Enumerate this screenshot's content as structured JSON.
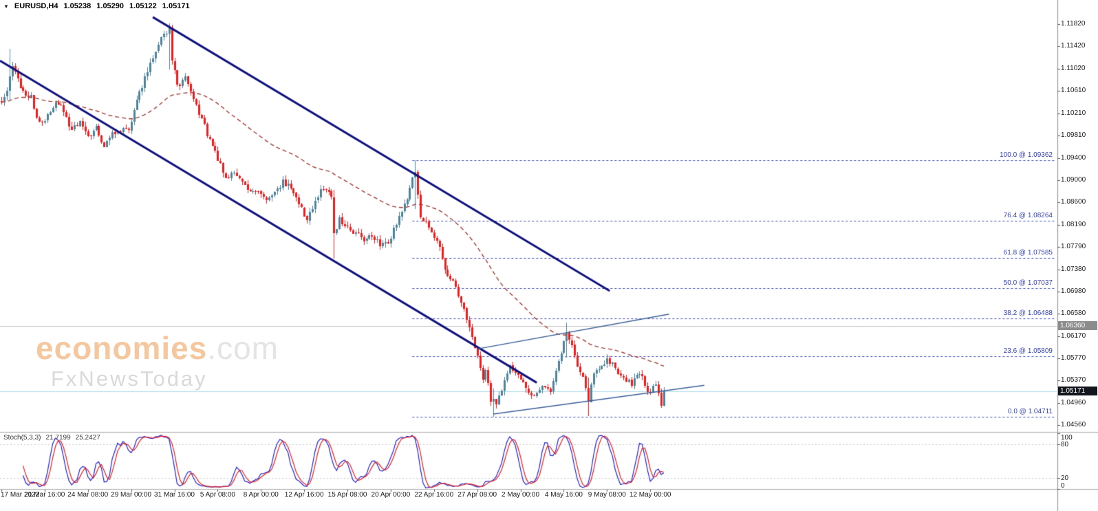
{
  "header": {
    "dropdown_icon": "triangle-down",
    "symbol_timeframe": "EURUSD,H4",
    "open": "1.05238",
    "high": "1.05290",
    "low": "1.05122",
    "close": "1.05171"
  },
  "watermark": {
    "brand": "economies",
    "suffix": ".com",
    "subtitle": "FxNewsToday",
    "brand_color": "#f5c79e",
    "suffix_color": "#e4e4e4",
    "subtitle_color": "#d9d9d9"
  },
  "price_axis": {
    "current_price_badge": {
      "value": "1.05171",
      "bg": "#14161e",
      "color": "#ffffff"
    },
    "level_badge": {
      "value": "1.06360",
      "bg": "#8c8c8c",
      "color": "#ffffff"
    }
  },
  "indicator_panel": {
    "name": "Stoch(5,3,3)",
    "main_value": "21.7199",
    "signal_value": "25.2427"
  },
  "chart_data": {
    "type": "candlestick",
    "symbol": "EURUSD",
    "timeframe": "H4",
    "bars": 246,
    "bar_labels_every": 16,
    "price_range": {
      "min": 1.0445,
      "max": 1.1226
    },
    "price_axis_labels": [
      "1.11820",
      "1.11420",
      "1.11020",
      "1.10610",
      "1.10210",
      "1.09810",
      "1.09400",
      "1.09000",
      "1.08600",
      "1.08190",
      "1.07790",
      "1.07380",
      "1.06980",
      "1.06580",
      "1.06170",
      "1.05770",
      "1.05370",
      "1.04960",
      "1.04560"
    ],
    "time_axis_labels": [
      "17 Mar 2022",
      "21 Mar 16:00",
      "24 Mar 08:00",
      "29 Mar 00:00",
      "31 Mar 16:00",
      "5 Apr 08:00",
      "8 Apr 00:00",
      "12 Apr 16:00",
      "15 Apr 08:00",
      "20 Apr 00:00",
      "22 Apr 16:00",
      "27 Apr 08:00",
      "2 May 00:00",
      "4 May 16:00",
      "9 May 08:00",
      "12 May 00:00"
    ],
    "price_path": [
      [
        0,
        1.104
      ],
      [
        2,
        1.106
      ],
      [
        4,
        1.111
      ],
      [
        5,
        1.1092
      ],
      [
        8,
        1.1062
      ],
      [
        11,
        1.105
      ],
      [
        14,
        1.1
      ],
      [
        17,
        1.1015
      ],
      [
        20,
        1.1042
      ],
      [
        23,
        1.1028
      ],
      [
        26,
        1.099
      ],
      [
        29,
        1.1003
      ],
      [
        32,
        1.0975
      ],
      [
        35,
        1.0997
      ],
      [
        38,
        1.096
      ],
      [
        41,
        1.0982
      ],
      [
        44,
        1.0992
      ],
      [
        47,
        1.0985
      ],
      [
        50,
        1.104
      ],
      [
        53,
        1.1086
      ],
      [
        56,
        1.112
      ],
      [
        59,
        1.1157
      ],
      [
        62,
        1.1175
      ],
      [
        63,
        1.112
      ],
      [
        65,
        1.1067
      ],
      [
        68,
        1.109
      ],
      [
        71,
        1.1045
      ],
      [
        74,
        1.101
      ],
      [
        77,
        1.0971
      ],
      [
        80,
        1.094
      ],
      [
        83,
        1.0906
      ],
      [
        86,
        1.0912
      ],
      [
        89,
        1.0895
      ],
      [
        92,
        1.0882
      ],
      [
        95,
        1.0878
      ],
      [
        98,
        1.0866
      ],
      [
        101,
        1.0876
      ],
      [
        104,
        1.09
      ],
      [
        107,
        1.0882
      ],
      [
        110,
        1.0856
      ],
      [
        113,
        1.0827
      ],
      [
        116,
        1.0866
      ],
      [
        119,
        1.0885
      ],
      [
        122,
        1.087
      ],
      [
        123,
        1.08
      ],
      [
        125,
        1.0827
      ],
      [
        128,
        1.0812
      ],
      [
        131,
        1.0805
      ],
      [
        134,
        1.079
      ],
      [
        137,
        1.0802
      ],
      [
        140,
        1.078
      ],
      [
        143,
        1.0786
      ],
      [
        146,
        1.0822
      ],
      [
        149,
        1.0853
      ],
      [
        152,
        1.09
      ],
      [
        153,
        1.092
      ],
      [
        155,
        1.0836
      ],
      [
        158,
        1.0812
      ],
      [
        161,
        1.0793
      ],
      [
        164,
        1.074
      ],
      [
        167,
        1.0713
      ],
      [
        170,
        1.068
      ],
      [
        173,
        1.0637
      ],
      [
        176,
        1.058
      ],
      [
        178,
        1.0535
      ],
      [
        179,
        1.0557
      ],
      [
        181,
        1.05
      ],
      [
        183,
        1.0498
      ],
      [
        185,
        1.0522
      ],
      [
        188,
        1.0562
      ],
      [
        191,
        1.0545
      ],
      [
        194,
        1.0521
      ],
      [
        197,
        1.0504
      ],
      [
        200,
        1.0532
      ],
      [
        203,
        1.0522
      ],
      [
        206,
        1.057
      ],
      [
        209,
        1.0622
      ],
      [
        211,
        1.0598
      ],
      [
        213,
        1.056
      ],
      [
        215,
        1.054
      ],
      [
        217,
        1.05
      ],
      [
        219,
        1.0551
      ],
      [
        221,
        1.0562
      ],
      [
        224,
        1.0572
      ],
      [
        227,
        1.056
      ],
      [
        230,
        1.0542
      ],
      [
        233,
        1.0529
      ],
      [
        236,
        1.0552
      ],
      [
        239,
        1.0514
      ],
      [
        242,
        1.0532
      ],
      [
        244,
        1.0495
      ],
      [
        245,
        1.05171
      ]
    ],
    "wick_overrides": [
      [
        3,
        1.1137,
        1.1045
      ],
      [
        62,
        1.1184,
        1.11
      ],
      [
        123,
        1.0882,
        1.0757
      ],
      [
        153,
        1.0936,
        1.0848
      ],
      [
        182,
        1.0522,
        1.04711
      ],
      [
        209,
        1.0642,
        1.0578
      ],
      [
        217,
        1.0542,
        1.0472
      ]
    ],
    "current_price": 1.05171,
    "level_line_price": 1.0636,
    "fib_start_bar": 152,
    "fib_levels": [
      {
        "label": "100.0 @ 1.09362",
        "price": 1.09362
      },
      {
        "label": "76.4 @ 1.08264",
        "price": 1.08264
      },
      {
        "label": "61.8 @ 1.07585",
        "price": 1.07585
      },
      {
        "label": "50.0 @ 1.07037",
        "price": 1.07037
      },
      {
        "label": "38.2 @ 1.06488",
        "price": 1.06488
      },
      {
        "label": "23.6 @ 1.05809",
        "price": 1.05809
      },
      {
        "label": "0.0 @ 1.04711",
        "price": 1.04711
      }
    ],
    "overlays": {
      "channel_upper": [
        [
          56,
          1.1195
        ],
        [
          225,
          1.0699
        ]
      ],
      "channel_lower": [
        [
          -0.5,
          1.1116
        ],
        [
          198,
          1.0533
        ]
      ],
      "wedge_upper": [
        [
          176,
          1.0594
        ],
        [
          247,
          1.0657
        ]
      ],
      "wedge_lower": [
        [
          182,
          1.0476
        ],
        [
          260,
          1.0528
        ]
      ]
    },
    "moving_average": {
      "type": "smoothed",
      "period": 30,
      "style": "dashed"
    },
    "stochastic": {
      "k_period": 5,
      "slowing": 3,
      "d_period": 3,
      "last_main": 21.7199,
      "last_signal": 25.2427,
      "range": [
        0,
        100
      ],
      "levels": [
        80,
        20
      ],
      "axis_labels": [
        "100",
        "80",
        "20",
        "0"
      ]
    },
    "colors": {
      "bull": "#4e8399",
      "bear": "#ee1c1c",
      "ma": "#a03c36",
      "channel": "#0f117c",
      "wedge": "#3a5e96",
      "fib": "#3443b5",
      "current_line": "#a9dbec",
      "level_line": "#c6c6c6",
      "stoch_main": "#2121cc",
      "stoch_signal": "#e02020"
    }
  }
}
